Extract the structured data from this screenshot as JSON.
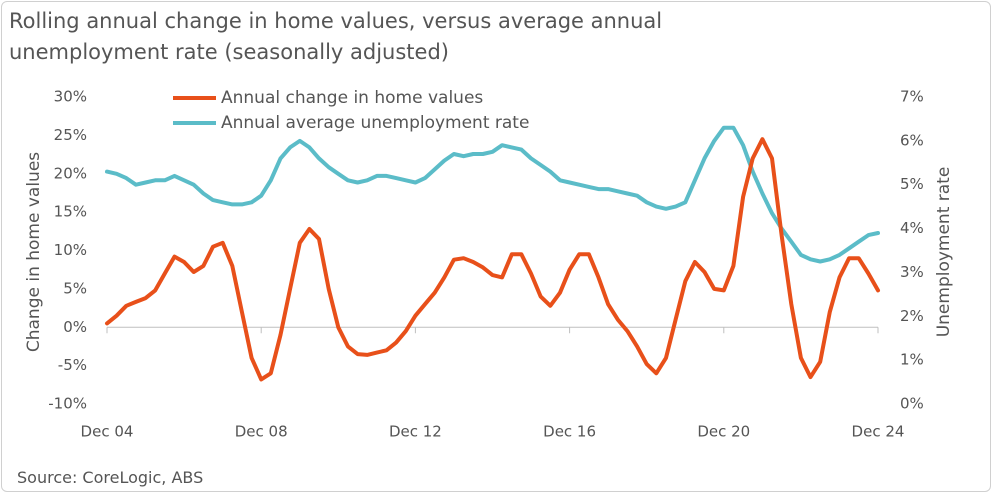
{
  "chart_data": {
    "type": "line",
    "title": "Rolling annual change in home values, versus average annual unemployment rate (seasonally adjusted)",
    "source": "Source: CoreLogic, ABS",
    "y_label": "Change in home values",
    "y2_label": "Unemployment rate",
    "categories": [
      "Dec 04",
      null,
      null,
      null,
      null,
      null,
      null,
      null,
      null,
      null,
      null,
      null,
      null,
      null,
      null,
      null,
      "Dec 08",
      null,
      null,
      null,
      null,
      null,
      null,
      null,
      null,
      null,
      null,
      null,
      null,
      null,
      null,
      null,
      "Dec 12",
      null,
      null,
      null,
      null,
      null,
      null,
      null,
      null,
      null,
      null,
      null,
      null,
      null,
      null,
      null,
      "Dec 16",
      null,
      null,
      null,
      null,
      null,
      null,
      null,
      null,
      null,
      null,
      null,
      null,
      null,
      null,
      null,
      "Dec 20",
      null,
      null,
      null,
      null,
      null,
      null,
      null,
      null,
      null,
      null,
      null,
      null,
      null,
      null,
      null,
      "Dec 24"
    ],
    "ylim": [
      -10,
      30
    ],
    "yticks": [
      {
        "value": -10,
        "label": "-10%"
      },
      {
        "value": -5,
        "label": "-5%"
      },
      {
        "value": 0,
        "label": "0%"
      },
      {
        "value": 5,
        "label": "5%"
      },
      {
        "value": 10,
        "label": "10%"
      },
      {
        "value": 15,
        "label": "15%"
      },
      {
        "value": 20,
        "label": "20%"
      },
      {
        "value": 25,
        "label": "25%"
      },
      {
        "value": 30,
        "label": "30%"
      }
    ],
    "y2lim": [
      0,
      7
    ],
    "y2ticks": [
      {
        "value": 0,
        "label": "0%"
      },
      {
        "value": 1,
        "label": "1%"
      },
      {
        "value": 2,
        "label": "2%"
      },
      {
        "value": 3,
        "label": "3%"
      },
      {
        "value": 4,
        "label": "4%"
      },
      {
        "value": 5,
        "label": "5%"
      },
      {
        "value": 6,
        "label": "6%"
      },
      {
        "value": 7,
        "label": "7%"
      }
    ],
    "legend": "top-left",
    "series": [
      {
        "name": "Annual change in home values",
        "color": "#e8501a",
        "axis": "y",
        "values": [
          0.5,
          1.5,
          2.8,
          3.3,
          3.8,
          4.8,
          7,
          9.2,
          8.5,
          7.2,
          8,
          10.5,
          11,
          8,
          2,
          -4,
          -6.8,
          -6,
          -1,
          5,
          11,
          12.8,
          11.5,
          5,
          0,
          -2.5,
          -3.5,
          -3.6,
          -3.3,
          -3,
          -2,
          -0.5,
          1.5,
          3,
          4.5,
          6.5,
          8.8,
          9,
          8.5,
          7.8,
          6.8,
          6.5,
          9.5,
          9.5,
          7,
          4,
          2.8,
          4.5,
          7.5,
          9.5,
          9.5,
          6.5,
          3,
          1,
          -0.5,
          -2.5,
          -4.8,
          -6,
          -4,
          1,
          6,
          8.5,
          7.2,
          5,
          4.8,
          8,
          17,
          22,
          24.5,
          22,
          12,
          3,
          -4,
          -6.5,
          -4.5,
          2,
          6.5,
          9,
          9,
          7,
          4.8
        ]
      },
      {
        "name": "Annual average unemployment rate",
        "color": "#5bbcc8",
        "axis": "y2",
        "values": [
          5.3,
          5.25,
          5.15,
          5.0,
          5.05,
          5.1,
          5.1,
          5.2,
          5.1,
          5.0,
          4.8,
          4.65,
          4.6,
          4.55,
          4.55,
          4.6,
          4.75,
          5.1,
          5.6,
          5.85,
          6.0,
          5.85,
          5.6,
          5.4,
          5.25,
          5.1,
          5.05,
          5.1,
          5.2,
          5.2,
          5.15,
          5.1,
          5.05,
          5.15,
          5.35,
          5.55,
          5.7,
          5.65,
          5.7,
          5.7,
          5.75,
          5.9,
          5.85,
          5.8,
          5.6,
          5.45,
          5.3,
          5.1,
          5.05,
          5.0,
          4.95,
          4.9,
          4.9,
          4.85,
          4.8,
          4.75,
          4.6,
          4.5,
          4.45,
          4.5,
          4.6,
          5.1,
          5.6,
          6.0,
          6.3,
          6.3,
          5.9,
          5.3,
          4.8,
          4.35,
          4.0,
          3.7,
          3.4,
          3.3,
          3.25,
          3.3,
          3.4,
          3.55,
          3.7,
          3.85,
          3.9
        ]
      }
    ]
  }
}
